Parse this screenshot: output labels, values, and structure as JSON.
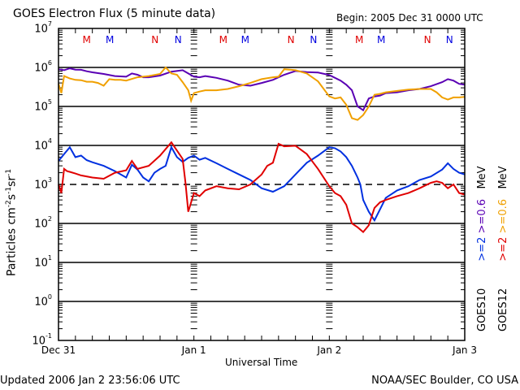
{
  "chart_data": {
    "type": "line",
    "title": "GOES Electron Flux (5 minute data)",
    "subtitle": "Begin: 2005 Dec 31 0000 UTC",
    "xlabel": "Universal Time",
    "ylabel": "Particles cm^-2 s^-1 sr^-1",
    "ylabel_parts": {
      "base": "Particles cm",
      "e1": "-2",
      "s": "s",
      "e2": "-1",
      "sr": "sr",
      "e3": "-1"
    },
    "yscale": "log",
    "ylim": [
      0.1,
      10000000
    ],
    "y_ticks": [
      {
        "base": "10",
        "exp": "7"
      },
      {
        "base": "10",
        "exp": "6"
      },
      {
        "base": "10",
        "exp": "5"
      },
      {
        "base": "10",
        "exp": "4"
      },
      {
        "base": "10",
        "exp": "3"
      },
      {
        "base": "10",
        "exp": "2"
      },
      {
        "base": "10",
        "exp": "1"
      },
      {
        "base": "10",
        "exp": "0"
      },
      {
        "base": "10",
        "exp": "-1"
      }
    ],
    "xlim_hours": [
      0,
      72
    ],
    "x_tick_labels": [
      {
        "label": "Dec 31",
        "hour": 0
      },
      {
        "label": "Jan 1",
        "hour": 24
      },
      {
        "label": "Jan 2",
        "hour": 48
      },
      {
        "label": "Jan 3",
        "hour": 72
      }
    ],
    "x_minor_tick_hours": 3,
    "reference_line": {
      "value": 1000,
      "style": "dashed"
    },
    "grid_decades": [
      1000000,
      100000,
      10000,
      100,
      10,
      1
    ],
    "local_time_markers": [
      {
        "label": "M",
        "hour": 5.0,
        "color": "#e00000"
      },
      {
        "label": "M",
        "hour": 9.1,
        "color": "#0000e0"
      },
      {
        "label": "N",
        "hour": 17.1,
        "color": "#e00000"
      },
      {
        "label": "N",
        "hour": 21.2,
        "color": "#0000e0"
      },
      {
        "label": "M",
        "hour": 29.2,
        "color": "#e00000"
      },
      {
        "label": "M",
        "hour": 33.1,
        "color": "#0000e0"
      },
      {
        "label": "N",
        "hour": 41.2,
        "color": "#e00000"
      },
      {
        "label": "N",
        "hour": 45.2,
        "color": "#0000e0"
      },
      {
        "label": "M",
        "hour": 53.3,
        "color": "#e00000"
      },
      {
        "label": "M",
        "hour": 57.2,
        "color": "#0000e0"
      },
      {
        "label": "N",
        "hour": 65.4,
        "color": "#e00000"
      },
      {
        "label": "N",
        "hour": 69.3,
        "color": "#0000e0"
      }
    ],
    "series": [
      {
        "name": "GOES10 >=0.6 MeV",
        "color": "#5a00b4",
        "hours": [
          0,
          1,
          2,
          3,
          4,
          5,
          6,
          8,
          10,
          12,
          13,
          14,
          15,
          16,
          18,
          20,
          22,
          23,
          24,
          25,
          26,
          28,
          30,
          32,
          34,
          36,
          38,
          40,
          42,
          44,
          46,
          48,
          50,
          51,
          52,
          53,
          54,
          55,
          56,
          57,
          58,
          60,
          62,
          64,
          66,
          68,
          69,
          70,
          71,
          72
        ],
        "values": [
          900000,
          850000,
          950000,
          880000,
          870000,
          800000,
          750000,
          680000,
          600000,
          580000,
          700000,
          650000,
          560000,
          560000,
          620000,
          780000,
          850000,
          700000,
          580000,
          560000,
          600000,
          540000,
          460000,
          360000,
          340000,
          400000,
          480000,
          650000,
          810000,
          760000,
          740000,
          640000,
          460000,
          360000,
          260000,
          100000,
          80000,
          160000,
          180000,
          190000,
          220000,
          230000,
          260000,
          280000,
          330000,
          420000,
          500000,
          460000,
          380000,
          360000
        ]
      },
      {
        "name": "GOES12 >=0.6 MeV",
        "color": "#f0a000",
        "hours": [
          0,
          0.5,
          1,
          2,
          3,
          4,
          5,
          6,
          7,
          8,
          9,
          10,
          11,
          12,
          14,
          16,
          18,
          19,
          20,
          21,
          22,
          23,
          23.5,
          24,
          25,
          26,
          28,
          30,
          32,
          34,
          36,
          38,
          39,
          40,
          41,
          42,
          44,
          46,
          48,
          49,
          50,
          51,
          52,
          53,
          54,
          55,
          56,
          57,
          58,
          60,
          62,
          64,
          66,
          67,
          68,
          69,
          70,
          71,
          72
        ],
        "values": [
          380000,
          220000,
          600000,
          520000,
          480000,
          470000,
          430000,
          430000,
          400000,
          340000,
          500000,
          480000,
          480000,
          460000,
          560000,
          600000,
          680000,
          1000000,
          700000,
          650000,
          420000,
          260000,
          140000,
          220000,
          240000,
          260000,
          260000,
          280000,
          330000,
          400000,
          500000,
          560000,
          580000,
          900000,
          880000,
          850000,
          700000,
          440000,
          180000,
          160000,
          170000,
          110000,
          50000,
          45000,
          60000,
          100000,
          200000,
          210000,
          230000,
          250000,
          270000,
          280000,
          280000,
          230000,
          170000,
          150000,
          170000,
          170000,
          175000
        ]
      },
      {
        "name": "GOES10 >=2 MeV",
        "color": "#0030e0",
        "hours": [
          0,
          1,
          2,
          3,
          4,
          5,
          6,
          8,
          10,
          12,
          13,
          14,
          15,
          16,
          17,
          18,
          19,
          20,
          21,
          22,
          23,
          24,
          25,
          26,
          28,
          30,
          32,
          34,
          36,
          38,
          40,
          42,
          44,
          46,
          48,
          49,
          50,
          51,
          52,
          53,
          53.5,
          54,
          55,
          56,
          58,
          60,
          62,
          64,
          66,
          68,
          69,
          70,
          71,
          72
        ],
        "values": [
          4000,
          6000,
          9000,
          5000,
          5500,
          4200,
          3700,
          3000,
          2200,
          1500,
          3200,
          2400,
          1500,
          1200,
          2000,
          2500,
          3000,
          9000,
          5000,
          3800,
          4800,
          5500,
          4300,
          4800,
          3500,
          2500,
          1800,
          1300,
          800,
          650,
          900,
          1800,
          3600,
          5500,
          9000,
          8500,
          7000,
          5000,
          3000,
          1500,
          1000,
          400,
          200,
          120,
          450,
          700,
          900,
          1300,
          1600,
          2400,
          3500,
          2500,
          2000,
          1800
        ]
      },
      {
        "name": "GOES12 >=2 MeV",
        "color": "#e00000",
        "hours": [
          0,
          0.5,
          1,
          1.5,
          2,
          3,
          4,
          6,
          8,
          10,
          12,
          13,
          14,
          16,
          18,
          20,
          22,
          22.5,
          23,
          24,
          25,
          26,
          28,
          30,
          32,
          34,
          36,
          37,
          38,
          39,
          40,
          42,
          44,
          46,
          48,
          49,
          50,
          51,
          52,
          53,
          54,
          55,
          56,
          57,
          58,
          60,
          62,
          64,
          66,
          67,
          68,
          69,
          70,
          71,
          72
        ],
        "values": [
          1000,
          600,
          2500,
          2200,
          2100,
          1900,
          1700,
          1500,
          1400,
          2000,
          2300,
          4000,
          2500,
          3000,
          5500,
          12000,
          4500,
          1100,
          200,
          600,
          500,
          700,
          900,
          800,
          750,
          1000,
          1800,
          3000,
          3600,
          11000,
          9500,
          9800,
          6000,
          2500,
          900,
          600,
          500,
          300,
          100,
          80,
          60,
          90,
          250,
          350,
          400,
          500,
          600,
          800,
          1100,
          1200,
          1100,
          800,
          1000,
          600,
          550
        ]
      }
    ],
    "legend": [
      {
        "satellite": "GOES10",
        "high": ">=2",
        "high_color": "#0030e0",
        "low": ">=0.6",
        "low_color": "#5a00b4",
        "unit": "MeV"
      },
      {
        "satellite": "GOES12",
        "high": ">=2",
        "high_color": "#e00000",
        "low": ">=0.6",
        "low_color": "#f0a000",
        "unit": "MeV"
      }
    ],
    "legend_placement": "right-vertical"
  },
  "footer": {
    "updated": "Updated 2006 Jan  2 23:56:06 UTC",
    "credit": "NOAA/SEC Boulder, CO USA"
  }
}
